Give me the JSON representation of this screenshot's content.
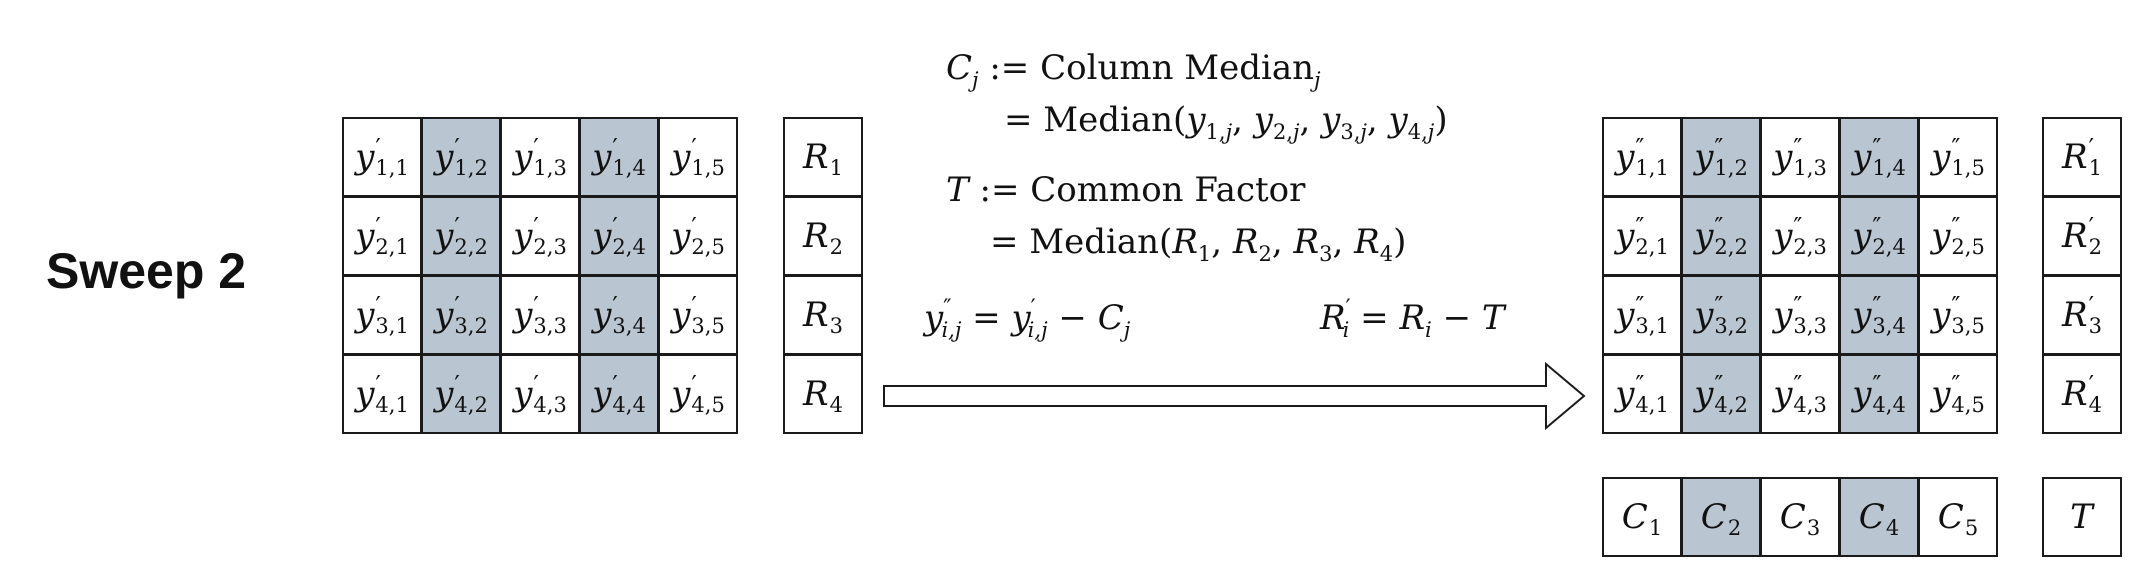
{
  "title": "Sweep 2",
  "left_matrix": {
    "rows": [
      [
        {
          "base": "y",
          "prime": "′",
          "sub": "1,1"
        },
        {
          "base": "y",
          "prime": "′",
          "sub": "1,2"
        },
        {
          "base": "y",
          "prime": "′",
          "sub": "1,3"
        },
        {
          "base": "y",
          "prime": "′",
          "sub": "1,4"
        },
        {
          "base": "y",
          "prime": "′",
          "sub": "1,5"
        }
      ],
      [
        {
          "base": "y",
          "prime": "′",
          "sub": "2,1"
        },
        {
          "base": "y",
          "prime": "′",
          "sub": "2,2"
        },
        {
          "base": "y",
          "prime": "′",
          "sub": "2,3"
        },
        {
          "base": "y",
          "prime": "′",
          "sub": "2,4"
        },
        {
          "base": "y",
          "prime": "′",
          "sub": "2,5"
        }
      ],
      [
        {
          "base": "y",
          "prime": "′",
          "sub": "3,1"
        },
        {
          "base": "y",
          "prime": "′",
          "sub": "3,2"
        },
        {
          "base": "y",
          "prime": "′",
          "sub": "3,3"
        },
        {
          "base": "y",
          "prime": "′",
          "sub": "3,4"
        },
        {
          "base": "y",
          "prime": "′",
          "sub": "3,5"
        }
      ],
      [
        {
          "base": "y",
          "prime": "′",
          "sub": "4,1"
        },
        {
          "base": "y",
          "prime": "′",
          "sub": "4,2"
        },
        {
          "base": "y",
          "prime": "′",
          "sub": "4,3"
        },
        {
          "base": "y",
          "prime": "′",
          "sub": "4,4"
        },
        {
          "base": "y",
          "prime": "′",
          "sub": "4,5"
        }
      ]
    ],
    "shaded_columns": [
      2,
      4
    ]
  },
  "left_row_effects": [
    {
      "base": "R",
      "prime": "",
      "sub": "1"
    },
    {
      "base": "R",
      "prime": "",
      "sub": "2"
    },
    {
      "base": "R",
      "prime": "",
      "sub": "3"
    },
    {
      "base": "R",
      "prime": "",
      "sub": "4"
    }
  ],
  "right_matrix": {
    "rows": [
      [
        {
          "base": "y",
          "prime": "″",
          "sub": "1,1"
        },
        {
          "base": "y",
          "prime": "″",
          "sub": "1,2"
        },
        {
          "base": "y",
          "prime": "″",
          "sub": "1,3"
        },
        {
          "base": "y",
          "prime": "″",
          "sub": "1,4"
        },
        {
          "base": "y",
          "prime": "″",
          "sub": "1,5"
        }
      ],
      [
        {
          "base": "y",
          "prime": "″",
          "sub": "2,1"
        },
        {
          "base": "y",
          "prime": "″",
          "sub": "2,2"
        },
        {
          "base": "y",
          "prime": "″",
          "sub": "2,3"
        },
        {
          "base": "y",
          "prime": "″",
          "sub": "2,4"
        },
        {
          "base": "y",
          "prime": "″",
          "sub": "2,5"
        }
      ],
      [
        {
          "base": "y",
          "prime": "″",
          "sub": "3,1"
        },
        {
          "base": "y",
          "prime": "″",
          "sub": "3,2"
        },
        {
          "base": "y",
          "prime": "″",
          "sub": "3,3"
        },
        {
          "base": "y",
          "prime": "″",
          "sub": "3,4"
        },
        {
          "base": "y",
          "prime": "″",
          "sub": "3,5"
        }
      ],
      [
        {
          "base": "y",
          "prime": "″",
          "sub": "4,1"
        },
        {
          "base": "y",
          "prime": "″",
          "sub": "4,2"
        },
        {
          "base": "y",
          "prime": "″",
          "sub": "4,3"
        },
        {
          "base": "y",
          "prime": "″",
          "sub": "4,4"
        },
        {
          "base": "y",
          "prime": "″",
          "sub": "4,5"
        }
      ]
    ],
    "shaded_columns": [
      2,
      4
    ]
  },
  "right_row_effects": [
    {
      "base": "R",
      "prime": "′",
      "sub": "1"
    },
    {
      "base": "R",
      "prime": "′",
      "sub": "2"
    },
    {
      "base": "R",
      "prime": "′",
      "sub": "3"
    },
    {
      "base": "R",
      "prime": "′",
      "sub": "4"
    }
  ],
  "column_effects": [
    {
      "base": "C",
      "prime": "",
      "sub": "1"
    },
    {
      "base": "C",
      "prime": "",
      "sub": "2"
    },
    {
      "base": "C",
      "prime": "",
      "sub": "3"
    },
    {
      "base": "C",
      "prime": "",
      "sub": "4"
    },
    {
      "base": "C",
      "prime": "",
      "sub": "5"
    }
  ],
  "common_factor_cell": {
    "base": "T",
    "prime": "",
    "sub": ""
  },
  "formulas": {
    "cj_line1": "C_j := Column Median_j",
    "cj_line2": "= Median(y_{1,j}, y_{2,j}, y_{3,j}, y_{4,j})",
    "t_line1": "T := Common Factor",
    "t_line2": "= Median(R_1, R_2, R_3, R_4)",
    "y_update": "y''_{i,j} = y'_{i,j} − C_j",
    "r_update": "R'_i = R_i − T"
  },
  "colors": {
    "shade": "#b9c5d0",
    "border": "#1a1a1a"
  }
}
